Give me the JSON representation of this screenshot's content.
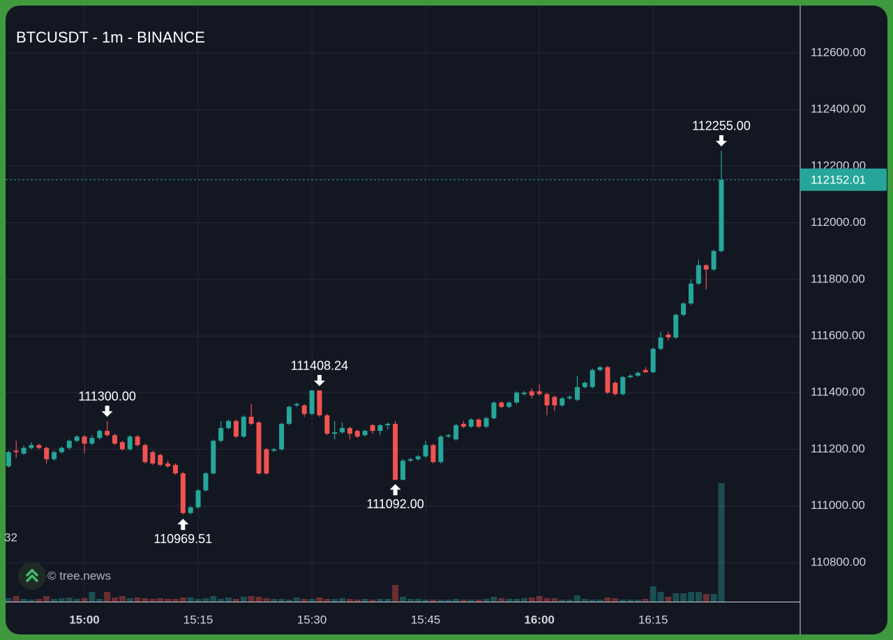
{
  "chart_data": {
    "type": "candlestick",
    "title": "BTCUSDT - 1m - BINANCE",
    "watermark": "© tree.news",
    "volume_scale_label": "32",
    "grid": true,
    "up_color": "#26a69a",
    "down_color": "#ef5350",
    "x": [
      890,
      891,
      892,
      893,
      894,
      895,
      896,
      897,
      898,
      899,
      900,
      901,
      902,
      903,
      904,
      905,
      906,
      907,
      908,
      909,
      910,
      911,
      912,
      913,
      914,
      915,
      916,
      917,
      918,
      919,
      920,
      921,
      922,
      923,
      924,
      925,
      926,
      927,
      928,
      929,
      930,
      931,
      932,
      933,
      934,
      935,
      936,
      937,
      938,
      939,
      940,
      941,
      942,
      943,
      944,
      945,
      946,
      947,
      948,
      949,
      950,
      951,
      952,
      953,
      954,
      955,
      956,
      957,
      958,
      959,
      960,
      961,
      962,
      963,
      964,
      965,
      966,
      967,
      968,
      969,
      970,
      971,
      972,
      973,
      974,
      975,
      976,
      977,
      978,
      979,
      980,
      981,
      982,
      983,
      984
    ],
    "open": [
      111140,
      111195,
      111185,
      111205,
      111215,
      111205,
      111165,
      111190,
      111205,
      111230,
      111245,
      111220,
      111240,
      111265,
      111250,
      111225,
      111200,
      111245,
      111215,
      111190,
      111180,
      111150,
      111145,
      111115,
      110975,
      110995,
      111055,
      111115,
      111230,
      111275,
      111300,
      111245,
      111315,
      111295,
      111200,
      111195,
      111200,
      111290,
      111355,
      111355,
      111325,
      111408,
      111320,
      111255,
      111260,
      111275,
      111265,
      111250,
      111285,
      111265,
      111285,
      111290,
      111092,
      111160,
      111165,
      111175,
      111215,
      111155,
      111245,
      111235,
      111290,
      111280,
      111305,
      111280,
      111310,
      111365,
      111350,
      111365,
      111395,
      111405,
      111405,
      111395,
      111385,
      111355,
      111380,
      111375,
      111420,
      111420,
      111480,
      111490,
      111435,
      111395,
      111455,
      111460,
      111480,
      111472,
      111555,
      111605,
      111595,
      111675,
      111715,
      111785,
      111850,
      111835,
      111900
    ],
    "high": [
      111195,
      111230,
      111215,
      111225,
      111220,
      111210,
      111195,
      111210,
      111235,
      111250,
      111250,
      111250,
      111270,
      111300,
      111255,
      111230,
      111250,
      111250,
      111220,
      111195,
      111185,
      111160,
      111150,
      111120,
      111000,
      111060,
      111120,
      111235,
      111300,
      111305,
      111305,
      111320,
      111360,
      111300,
      111205,
      111205,
      111295,
      111355,
      111365,
      111360,
      111408,
      111408.24,
      111325,
      111300,
      111295,
      111280,
      111270,
      111270,
      111290,
      111290,
      111295,
      111300,
      111165,
      111170,
      111180,
      111230,
      111220,
      111250,
      111255,
      111290,
      111300,
      111310,
      111310,
      111315,
      111370,
      111370,
      111370,
      111405,
      111405,
      111415,
      111430,
      111400,
      111390,
      111385,
      111390,
      111460,
      111440,
      111485,
      111495,
      111495,
      111440,
      111460,
      111465,
      111475,
      111490,
      111560,
      111615,
      111615,
      111680,
      111720,
      111800,
      111870,
      111855,
      111905,
      112255
    ],
    "low": [
      111135,
      111170,
      111180,
      111200,
      111200,
      111150,
      111160,
      111185,
      111200,
      111225,
      111185,
      111215,
      111235,
      111245,
      111215,
      111195,
      111195,
      111210,
      111150,
      111145,
      111140,
      111135,
      111110,
      110969.51,
      110970,
      110990,
      111050,
      111110,
      111225,
      111270,
      111240,
      111240,
      111285,
      111110,
      111110,
      111190,
      111195,
      111285,
      111350,
      111315,
      111320,
      111315,
      111250,
      111235,
      111255,
      111235,
      111240,
      111245,
      111255,
      111250,
      111270,
      111092,
      111092,
      111155,
      111160,
      111170,
      111150,
      111150,
      111240,
      111230,
      111275,
      111275,
      111275,
      111275,
      111305,
      111345,
      111345,
      111360,
      111390,
      111380,
      111390,
      111320,
      111335,
      111350,
      111375,
      111370,
      111415,
      111415,
      111475,
      111395,
      111390,
      111390,
      111450,
      111455,
      111470,
      111470,
      111550,
      111585,
      111590,
      111670,
      111710,
      111780,
      111765,
      111830,
      111895
    ],
    "close": [
      111190,
      111190,
      111205,
      111215,
      111205,
      111165,
      111190,
      111205,
      111230,
      111245,
      111220,
      111240,
      111265,
      111250,
      111220,
      111200,
      111245,
      111215,
      111155,
      111150,
      111145,
      111140,
      111115,
      110975,
      110995,
      111055,
      111115,
      111230,
      111275,
      111300,
      111245,
      111315,
      111290,
      111115,
      111115,
      111200,
      111290,
      111350,
      111360,
      111325,
      111408,
      111320,
      111255,
      111260,
      111275,
      111255,
      111245,
      111265,
      111265,
      111285,
      111290,
      111092,
      111160,
      111165,
      111175,
      111215,
      111155,
      111245,
      111250,
      111285,
      111280,
      111305,
      111280,
      111310,
      111365,
      111350,
      111365,
      111400,
      111400,
      111390,
      111395,
      111355,
      111355,
      111380,
      111385,
      111420,
      111435,
      111480,
      111490,
      111400,
      111395,
      111455,
      111460,
      111470,
      111472,
      111555,
      111595,
      111595,
      111675,
      111715,
      111785,
      111850,
      111835,
      111900,
      112152.01
    ],
    "volume": [
      5,
      8,
      4,
      3,
      4,
      8,
      4,
      5,
      6,
      4,
      5,
      14,
      4,
      14,
      6,
      8,
      5,
      6,
      5,
      4,
      5,
      4,
      4,
      6,
      6,
      4,
      5,
      8,
      4,
      6,
      4,
      7,
      8,
      7,
      5,
      4,
      4,
      3,
      6,
      4,
      4,
      6,
      4,
      4,
      5,
      4,
      3,
      4,
      3,
      4,
      4,
      24,
      7,
      4,
      4,
      3,
      3,
      3,
      3,
      4,
      3,
      3,
      3,
      4,
      7,
      5,
      4,
      4,
      5,
      6,
      8,
      5,
      5,
      3,
      3,
      9,
      4,
      3,
      3,
      6,
      5,
      3,
      3,
      3,
      4,
      22,
      14,
      7,
      12,
      12,
      14,
      14,
      11,
      11,
      170
    ],
    "volume_ylim": [
      0,
      400
    ],
    "xlim": [
      889.6,
      994.4
    ],
    "xticks": [
      {
        "value": 900,
        "label": "15:00"
      },
      {
        "value": 915,
        "label": "15:15"
      },
      {
        "value": 930,
        "label": "15:30"
      },
      {
        "value": 945,
        "label": "15:45"
      },
      {
        "value": 960,
        "label": "16:00"
      },
      {
        "value": 975,
        "label": "16:15"
      }
    ],
    "ylim": [
      110662,
      112767
    ],
    "yticks": [
      {
        "value": 110800,
        "label": "110800.00"
      },
      {
        "value": 111000,
        "label": "111000.00"
      },
      {
        "value": 111200,
        "label": "111200.00"
      },
      {
        "value": 111400,
        "label": "111400.00"
      },
      {
        "value": 111600,
        "label": "111600.00"
      },
      {
        "value": 111800,
        "label": "111800.00"
      },
      {
        "value": 112000,
        "label": "112000.00"
      },
      {
        "value": 112200,
        "label": "112200.00"
      },
      {
        "value": 112400,
        "label": "112400.00"
      },
      {
        "value": 112600,
        "label": "112600.00"
      }
    ],
    "last_price": 112152.01,
    "annotations": [
      {
        "x": 903,
        "value": 111300,
        "label": "111300.00",
        "position": "above"
      },
      {
        "x": 913,
        "value": 110969.51,
        "label": "110969.51",
        "position": "below"
      },
      {
        "x": 931,
        "value": 111408.24,
        "label": "111408.24",
        "position": "above"
      },
      {
        "x": 941,
        "value": 111092,
        "label": "111092.00",
        "position": "below"
      },
      {
        "x": 984,
        "value": 112255,
        "label": "112255.00",
        "position": "above"
      }
    ]
  }
}
